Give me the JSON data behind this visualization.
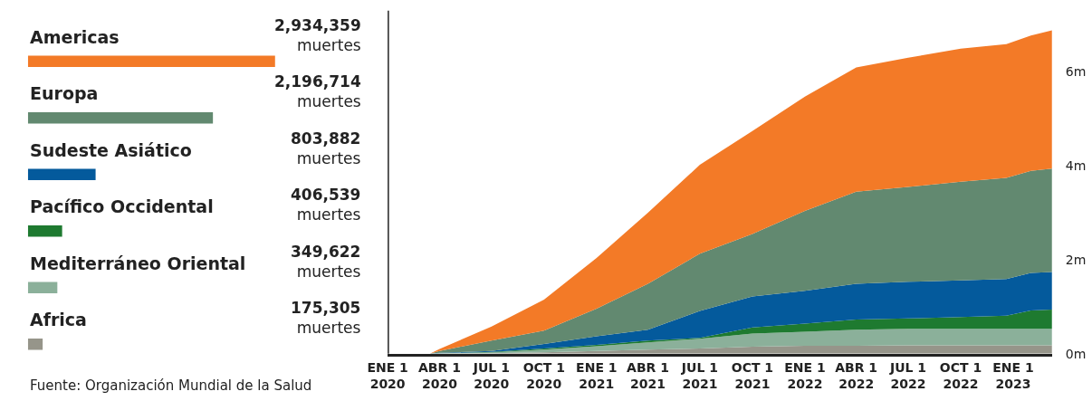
{
  "chart_data": [
    {
      "type": "bar",
      "orientation": "horizontal",
      "tick_labels": false,
      "categories": [
        "Americas",
        "Europa",
        "Sudeste Asiático",
        "Pacífico Occidental",
        "Mediterráneo Oriental",
        "Africa"
      ],
      "values": [
        2934359,
        2196714,
        803882,
        406539,
        349622,
        175305
      ],
      "colors": [
        "#f37a27",
        "#628970",
        "#045a9c",
        "#1e7a30",
        "#8bb09a",
        "#96958a"
      ],
      "value_labels": [
        "2,934,359\nmuertes",
        "2,196,714\nmuertes",
        "803,882\nmuertes",
        "406,539\nmuertes",
        "349,622\nmuertes",
        "175,305\nmuertes"
      ],
      "annotations": [
        "Fuente: Organización Mundial de la Salud"
      ]
    },
    {
      "type": "area",
      "stacked": true,
      "legend": false,
      "x": [
        "2020-01-01",
        "2020-03-15",
        "2020-04-01",
        "2020-07-01",
        "2020-10-01",
        "2021-01-01",
        "2021-04-01",
        "2021-07-01",
        "2021-10-01",
        "2022-01-01",
        "2022-04-01",
        "2022-07-01",
        "2022-10-01",
        "2022-12-20",
        "2023-02-01",
        "2023-03-10"
      ],
      "series": [
        {
          "color": "#96958a",
          "values": [
            0,
            0,
            0,
            0.01,
            0.03,
            0.06,
            0.09,
            0.11,
            0.15,
            0.17,
            0.17,
            0.18,
            0.18,
            0.18,
            0.18,
            0.18
          ]
        },
        {
          "color": "#8bb09a",
          "values": [
            0,
            0,
            0.01,
            0.02,
            0.06,
            0.1,
            0.15,
            0.21,
            0.28,
            0.3,
            0.34,
            0.35,
            0.35,
            0.35,
            0.35,
            0.35
          ]
        },
        {
          "color": "#1e7a30",
          "values": [
            0,
            0,
            0,
            0.01,
            0.02,
            0.03,
            0.04,
            0.02,
            0.13,
            0.17,
            0.22,
            0.22,
            0.25,
            0.28,
            0.39,
            0.41
          ]
        },
        {
          "color": "#045a9c",
          "values": [
            0,
            0,
            0.01,
            0.02,
            0.1,
            0.18,
            0.23,
            0.57,
            0.66,
            0.7,
            0.76,
            0.78,
            0.78,
            0.78,
            0.8,
            0.8
          ]
        },
        {
          "color": "#628970",
          "values": [
            0,
            0,
            0.04,
            0.22,
            0.28,
            0.59,
            0.98,
            1.22,
            1.33,
            1.7,
            1.96,
            2.02,
            2.1,
            2.15,
            2.17,
            2.2
          ]
        },
        {
          "color": "#f37a27",
          "values": [
            0,
            0,
            0.04,
            0.3,
            0.66,
            1.08,
            1.51,
            1.89,
            2.19,
            2.43,
            2.64,
            2.75,
            2.83,
            2.85,
            2.88,
            2.94
          ]
        }
      ],
      "xlim": [
        "2020-01-01",
        "2023-03-10"
      ],
      "ylim": [
        0,
        7.3
      ],
      "xticks": [
        {
          "value": "2020-01-01",
          "label": "ENE 1\n2020"
        },
        {
          "value": "2020-04-01",
          "label": "ABR 1\n2020"
        },
        {
          "value": "2020-07-01",
          "label": "JUL 1\n2020"
        },
        {
          "value": "2020-10-01",
          "label": "OCT 1\n2020"
        },
        {
          "value": "2021-01-01",
          "label": "ENE 1\n2021"
        },
        {
          "value": "2021-04-01",
          "label": "ABR 1\n2021"
        },
        {
          "value": "2021-07-01",
          "label": "JUL 1\n2021"
        },
        {
          "value": "2021-10-01",
          "label": "OCT 1\n2021"
        },
        {
          "value": "2022-01-01",
          "label": "ENE 1\n2022"
        },
        {
          "value": "2022-04-01",
          "label": "ABR 1\n2022"
        },
        {
          "value": "2022-07-01",
          "label": "JUL 1\n2022"
        },
        {
          "value": "2022-10-01",
          "label": "OCT 1\n2022"
        },
        {
          "value": "2023-01-01",
          "label": "ENE 1\n2023"
        }
      ],
      "yticks": [
        {
          "value": 0,
          "label": "0m"
        },
        {
          "value": 2,
          "label": "2m"
        },
        {
          "value": 4,
          "label": "4m"
        },
        {
          "value": 6,
          "label": "6m"
        }
      ]
    }
  ]
}
